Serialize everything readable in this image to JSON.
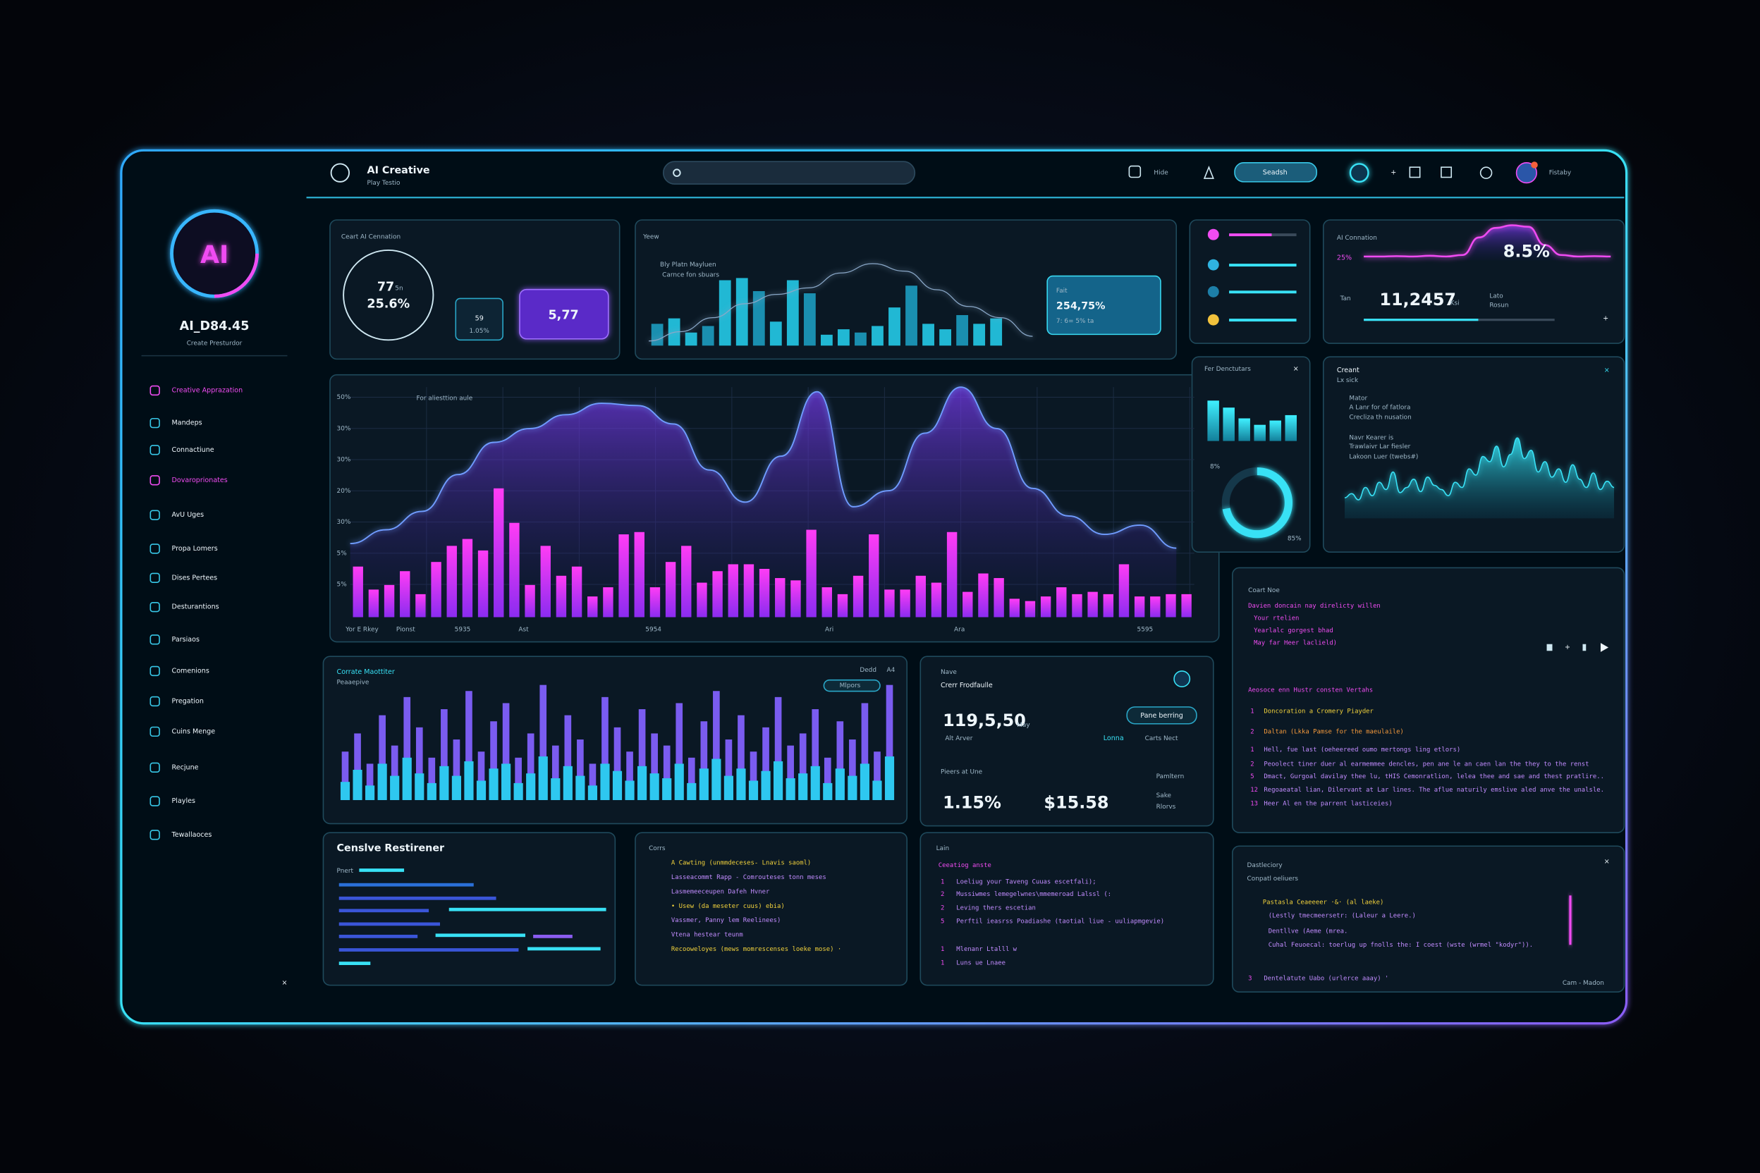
{
  "header": {
    "app_title": "AI Creative",
    "app_subtitle": "Play Testio",
    "hide": "Hide",
    "search_button": "Seadsh",
    "user": "Fistaby"
  },
  "sidebar": {
    "avatar": "AI",
    "name": "AI_D84.45",
    "role": "Create Presturdor",
    "close": "×",
    "nav": [
      "Creative Apprazation",
      "Mandeps",
      "Connactiune",
      "Dovaroprionates",
      "AvU Uges",
      "Propa Lomers",
      "Dises Pertees",
      "Desturantions",
      "Parsiaos",
      "Comenions",
      "Pregation",
      "Cuins Menge",
      "Recjune",
      "Playles",
      "Tewallaoces"
    ]
  },
  "connation_card": {
    "title": "Ceart AI Cennation",
    "ring_value": "77",
    "ring_unit": "5n",
    "ring_percent": "25.6%",
    "small_value": "59",
    "small_percent": "1.05%",
    "box_value": "5,77"
  },
  "view_card": {
    "title": "Yeew",
    "legend_1": "Bly Platn Mayluen",
    "legend_2": "Carnce fon sbuars",
    "callout_title": "Fait",
    "callout_value": "254,75%",
    "callout_note": "7: 6= 5% ta",
    "bars": [
      20,
      25,
      12,
      18,
      60,
      62,
      50,
      22,
      60,
      48,
      10,
      15,
      12,
      18,
      35,
      55,
      20,
      15,
      28,
      20,
      25
    ],
    "line": [
      5,
      15,
      30,
      45,
      55,
      62,
      78,
      88,
      80,
      60,
      42,
      30,
      10
    ]
  },
  "stats_card": {
    "title": "AI Connation",
    "percent": "25%",
    "peak": "8.5%",
    "count": "11,2457",
    "count_unit": "Ksi",
    "tag_1": "Lato",
    "tag_2": "Rosun",
    "side": "Tan",
    "plus": "+",
    "wave": [
      10,
      10,
      11,
      10,
      12,
      10,
      14,
      60,
      85,
      92,
      88,
      40,
      14,
      10,
      11,
      10
    ]
  },
  "detectors_card": {
    "title": "Fer Denctutars",
    "close": "×",
    "donut_label": "8%",
    "donut_value": "85%",
    "bars": [
      75,
      62,
      42,
      30,
      38,
      48
    ],
    "donut": 72
  },
  "creant_card": {
    "title": "Creant",
    "subtitle": "Lx sick",
    "close": "×",
    "lines": [
      "Mator",
      "A Lanr for of fatlora",
      "Crecliza th nusation",
      "Navr Kearer is",
      "Trawlaivr Lar fiesler",
      "Lakoon Luer (twebs#)"
    ],
    "area": [
      20,
      24,
      18,
      30,
      22,
      35,
      28,
      45,
      25,
      30,
      38,
      26,
      40,
      32,
      28,
      22,
      35,
      30,
      48,
      42,
      60,
      55,
      70,
      50,
      62,
      78,
      58,
      66,
      45,
      55,
      40,
      48,
      35,
      52,
      38,
      30,
      44,
      28,
      36,
      30
    ]
  },
  "main_chart": {
    "label": "For aliesttion aule",
    "y_labels": [
      "50%",
      "30%",
      "30%",
      "20%",
      "30%",
      "5%",
      "5%"
    ],
    "x_labels": [
      "Yor E Rkey",
      "Pionst",
      "5935",
      "Ast",
      "5954",
      "Ari",
      "Ara",
      "5595"
    ],
    "bars": [
      22,
      12,
      14,
      20,
      10,
      24,
      31,
      34,
      29,
      56,
      41,
      14,
      31,
      18,
      22,
      9,
      13,
      36,
      37,
      13,
      24,
      31,
      15,
      20,
      23,
      23,
      21,
      17,
      16,
      38,
      13,
      10,
      18,
      36,
      12,
      12,
      18,
      15,
      37,
      11,
      19,
      17,
      8,
      7,
      9,
      13,
      10,
      11,
      10,
      23,
      9,
      9,
      10,
      10
    ],
    "line": [
      32,
      38,
      46,
      62,
      76,
      82,
      88,
      93,
      92,
      84,
      64,
      50,
      70,
      98,
      48,
      55,
      80,
      100,
      82,
      56,
      44,
      36,
      40,
      30
    ]
  },
  "monitor_card": {
    "title": "Corrate Maottiter",
    "subtitle": "Peaaepive",
    "tab_1": "Dedd",
    "tab_2": "A4",
    "toggle": "Mlpors",
    "back": [
      40,
      55,
      30,
      70,
      45,
      85,
      60,
      35,
      75,
      50,
      90,
      40,
      65,
      80,
      35,
      55,
      95,
      45,
      70,
      50,
      30,
      85,
      60,
      40,
      75,
      55,
      45,
      80,
      35,
      65,
      90,
      50,
      70,
      40,
      60,
      85,
      45,
      55,
      75,
      35,
      65,
      50,
      80,
      40,
      95
    ],
    "front": [
      15,
      25,
      12,
      30,
      20,
      35,
      22,
      14,
      28,
      20,
      32,
      16,
      26,
      30,
      14,
      22,
      36,
      18,
      28,
      20,
      12,
      30,
      24,
      16,
      28,
      22,
      18,
      30,
      14,
      26,
      34,
      20,
      26,
      16,
      24,
      32,
      18,
      22,
      28,
      14,
      26,
      20,
      30,
      16,
      36
    ]
  },
  "finance_card": {
    "title": "Nave",
    "subtitle": "Crerr Frodfaulle",
    "value": "119,5,50",
    "value_unit": "May",
    "value_note": "Alt Arver",
    "pill": "Pane berring",
    "link": "Lonna",
    "link_2": "Carts Nect",
    "section": "Pieers at Une",
    "rate": "1.15%",
    "price": "$15.58",
    "side_title": "Pamltern",
    "side_1": "Sake",
    "side_2": "Rlorvs"
  },
  "notes_card": {
    "title": "Coart Noe",
    "intro": [
      "Davien doncain nay direlicty willen",
      "Your rtelien",
      "Yearlalc gorgest bhad",
      "May far Heer laclield)"
    ],
    "section": "Aeosoce enn Hustr consten Vertahs",
    "items": [
      {
        "n": "1",
        "text": "Doncoration a Cromery Piayder"
      },
      {
        "n": "2",
        "text": "Daltan (Lkka Pamse for the maeulaile)"
      },
      {
        "n": "1",
        "text": "Hell, fue last (oeheereed oumo mertongs ling etlors)"
      },
      {
        "n": "2",
        "text": "Peoolect tiner duer al earmemmee dencles, pen ane le an caen lan the they to the renst"
      },
      {
        "n": "5",
        "text": "Dmact, Gurgoal davilay thee lu, tHIS Cemonratlion, lelea thee and sae and thest pratlire.."
      },
      {
        "n": "12",
        "text": "Regoaeatal lian, Dilervant at Lar lines. The aflue naturily emslive aled anve the unalsle."
      },
      {
        "n": "13",
        "text": "Heer Al en the parrent lasticeies)"
      }
    ]
  },
  "restirener_card": {
    "title": "Censlve Restirener",
    "label": "Pnert"
  },
  "code_card": {
    "title": "Corrs",
    "lines": [
      "A Cawting (unmmdeceses-     Lnavis saoml)",
      "Lasseacommt Rapp - Comrouteses tonn meses",
      "Lasmemeeceupen Dafeh Hvner",
      "• Usew (da meseter cuus) ebia)",
      "Vassmer, Panny lem Reelinees)",
      "Vtena hestear teunm",
      "Recooweloyes (mews momrescenses loeke mose) ·"
    ]
  },
  "script_card": {
    "title": "Lain",
    "heading": "Ceeatiog anste",
    "items": [
      {
        "n": "1",
        "text": "Loeliug your Taveng Cuuas escetfali);"
      },
      {
        "n": "2",
        "text": "Mussiwmes lemegelwnes\\mmemeroad Lalssl (:"
      },
      {
        "n": "2",
        "text": "Leving thers escetian"
      },
      {
        "n": "5",
        "text": "Perftil ieasrss Poadiashe (taotial liue - uuliapmgevie)"
      },
      {
        "n": "1",
        "text": "Mlenanr Ltalll w"
      },
      {
        "n": "1",
        "text": "Luns ue Lnaee"
      }
    ]
  },
  "directory_card": {
    "title": "Dastleciory",
    "subtitle": "Conpatl oeliuers",
    "close": "×",
    "lines": [
      "Pastasla Ceaeeeer  ·&· (al laeke)",
      "(Lestly tmecmeersetr: (Laleur a Leere.)",
      "Dentllve (Aeme (mrea.",
      "Cuhal Feuoecal: toerlug up fnolls the: I coest (wste (wrmel \"kodyr\"))."
    ],
    "footer_n": "3",
    "footer_line": "Dentelatute Uabo (urlerce aaay) '",
    "status": "Cam - Madon"
  }
}
